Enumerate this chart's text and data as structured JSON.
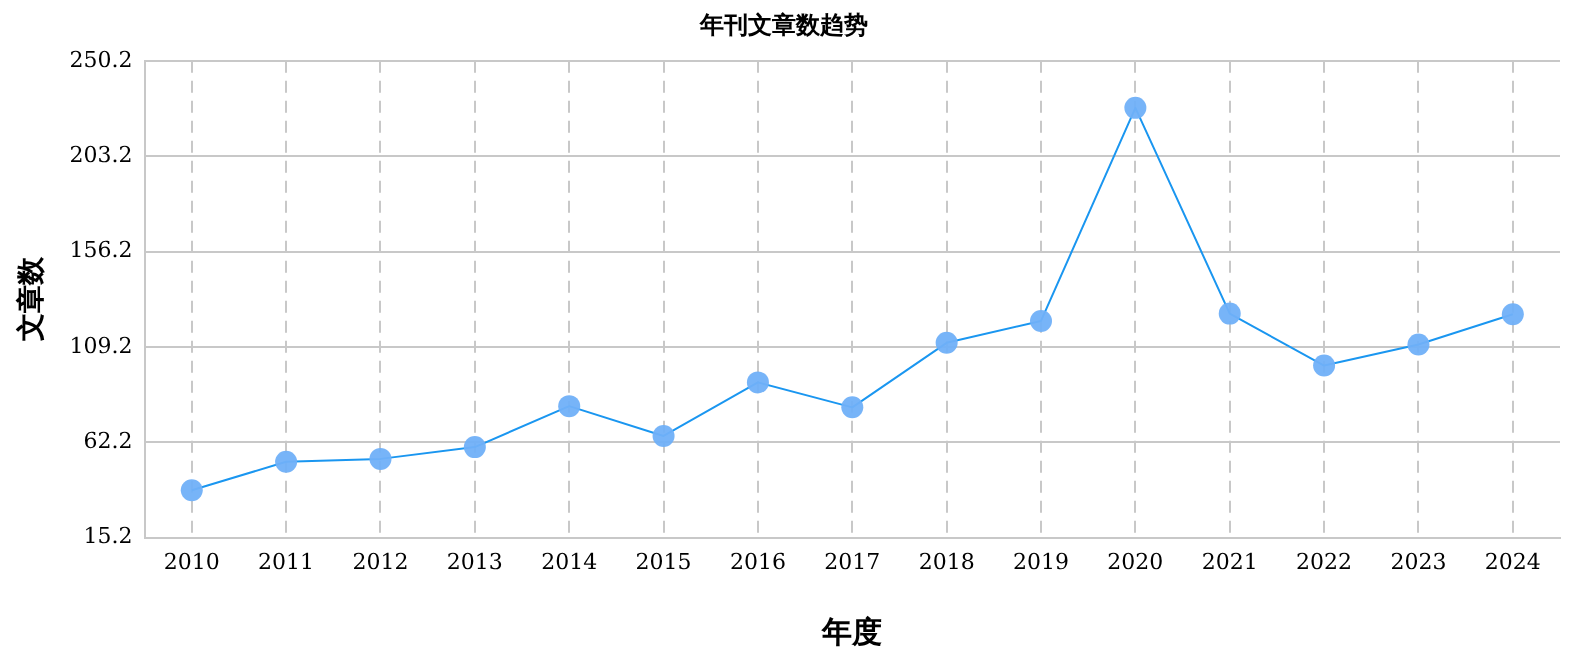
{
  "chart_data": {
    "type": "line",
    "title": "年刊文章数趋势",
    "xlabel": "年度",
    "ylabel": "文章数",
    "categories": [
      "2010",
      "2011",
      "2012",
      "2013",
      "2014",
      "2015",
      "2016",
      "2017",
      "2018",
      "2019",
      "2020",
      "2021",
      "2022",
      "2023",
      "2024"
    ],
    "series": [
      {
        "color": "#1a96f0",
        "values": [
          38.5,
          52.6,
          54,
          59.8,
          80,
          65.3,
          91.7,
          79.4,
          111.2,
          122,
          227,
          125.6,
          100,
          110.4,
          125.3
        ]
      }
    ],
    "ylim": [
      15.2,
      250.2
    ],
    "yticks": [
      15.2,
      62.2,
      109.2,
      156.2,
      203.2,
      250.2
    ],
    "grid": true,
    "legend": false,
    "marker": "circle",
    "line_style": "solid"
  }
}
